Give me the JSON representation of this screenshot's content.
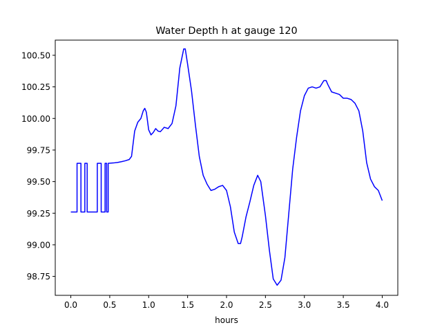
{
  "chart_data": {
    "type": "line",
    "title": "Water Depth h at gauge 120",
    "xlabel": "hours",
    "ylabel": "",
    "xlim": [
      -0.2,
      4.2
    ],
    "ylim": [
      98.6,
      100.62
    ],
    "grid": false,
    "legend": "none",
    "x_ticks": [
      {
        "value": 0.0,
        "label": "0.0"
      },
      {
        "value": 0.5,
        "label": "0.5"
      },
      {
        "value": 1.0,
        "label": "1.0"
      },
      {
        "value": 1.5,
        "label": "1.5"
      },
      {
        "value": 2.0,
        "label": "2.0"
      },
      {
        "value": 2.5,
        "label": "2.5"
      },
      {
        "value": 3.0,
        "label": "3.0"
      },
      {
        "value": 3.5,
        "label": "3.5"
      },
      {
        "value": 4.0,
        "label": "4.0"
      }
    ],
    "y_ticks": [
      {
        "value": 98.75,
        "label": "98.75"
      },
      {
        "value": 99.0,
        "label": "99.00"
      },
      {
        "value": 99.25,
        "label": "99.25"
      },
      {
        "value": 99.5,
        "label": "99.50"
      },
      {
        "value": 99.75,
        "label": "99.75"
      },
      {
        "value": 100.0,
        "label": "100.00"
      },
      {
        "value": 100.25,
        "label": "100.25"
      },
      {
        "value": 100.5,
        "label": "100.50"
      }
    ],
    "series": [
      {
        "color": "#0000ff",
        "points": [
          [
            0.0,
            99.26
          ],
          [
            0.08,
            99.26
          ],
          [
            0.08,
            99.645
          ],
          [
            0.13,
            99.645
          ],
          [
            0.13,
            99.26
          ],
          [
            0.18,
            99.26
          ],
          [
            0.18,
            99.645
          ],
          [
            0.21,
            99.645
          ],
          [
            0.21,
            99.26
          ],
          [
            0.34,
            99.26
          ],
          [
            0.34,
            99.645
          ],
          [
            0.39,
            99.645
          ],
          [
            0.39,
            99.26
          ],
          [
            0.44,
            99.26
          ],
          [
            0.44,
            99.645
          ],
          [
            0.46,
            99.645
          ],
          [
            0.46,
            99.26
          ],
          [
            0.48,
            99.26
          ],
          [
            0.48,
            99.645
          ],
          [
            0.55,
            99.648
          ],
          [
            0.6,
            99.652
          ],
          [
            0.65,
            99.658
          ],
          [
            0.7,
            99.665
          ],
          [
            0.75,
            99.675
          ],
          [
            0.78,
            99.7
          ],
          [
            0.82,
            99.9
          ],
          [
            0.86,
            99.97
          ],
          [
            0.9,
            100.0
          ],
          [
            0.93,
            100.06
          ],
          [
            0.95,
            100.08
          ],
          [
            0.97,
            100.05
          ],
          [
            1.0,
            99.91
          ],
          [
            1.03,
            99.87
          ],
          [
            1.06,
            99.89
          ],
          [
            1.09,
            99.92
          ],
          [
            1.12,
            99.9
          ],
          [
            1.15,
            99.895
          ],
          [
            1.2,
            99.93
          ],
          [
            1.25,
            99.92
          ],
          [
            1.3,
            99.96
          ],
          [
            1.35,
            100.1
          ],
          [
            1.4,
            100.4
          ],
          [
            1.45,
            100.55
          ],
          [
            1.47,
            100.55
          ],
          [
            1.5,
            100.43
          ],
          [
            1.55,
            100.22
          ],
          [
            1.6,
            99.95
          ],
          [
            1.65,
            99.7
          ],
          [
            1.7,
            99.55
          ],
          [
            1.75,
            99.48
          ],
          [
            1.8,
            99.43
          ],
          [
            1.85,
            99.44
          ],
          [
            1.9,
            99.46
          ],
          [
            1.95,
            99.47
          ],
          [
            2.0,
            99.43
          ],
          [
            2.05,
            99.3
          ],
          [
            2.1,
            99.1
          ],
          [
            2.15,
            99.01
          ],
          [
            2.18,
            99.01
          ],
          [
            2.2,
            99.06
          ],
          [
            2.25,
            99.22
          ],
          [
            2.3,
            99.34
          ],
          [
            2.35,
            99.47
          ],
          [
            2.4,
            99.55
          ],
          [
            2.44,
            99.5
          ],
          [
            2.5,
            99.23
          ],
          [
            2.55,
            98.96
          ],
          [
            2.6,
            98.73
          ],
          [
            2.65,
            98.68
          ],
          [
            2.7,
            98.72
          ],
          [
            2.75,
            98.9
          ],
          [
            2.8,
            99.25
          ],
          [
            2.85,
            99.6
          ],
          [
            2.9,
            99.85
          ],
          [
            2.95,
            100.06
          ],
          [
            3.0,
            100.18
          ],
          [
            3.05,
            100.24
          ],
          [
            3.1,
            100.25
          ],
          [
            3.15,
            100.24
          ],
          [
            3.2,
            100.25
          ],
          [
            3.25,
            100.3
          ],
          [
            3.28,
            100.3
          ],
          [
            3.3,
            100.27
          ],
          [
            3.35,
            100.21
          ],
          [
            3.4,
            100.2
          ],
          [
            3.45,
            100.19
          ],
          [
            3.5,
            100.16
          ],
          [
            3.55,
            100.16
          ],
          [
            3.6,
            100.15
          ],
          [
            3.65,
            100.12
          ],
          [
            3.7,
            100.06
          ],
          [
            3.75,
            99.9
          ],
          [
            3.8,
            99.65
          ],
          [
            3.85,
            99.52
          ],
          [
            3.9,
            99.46
          ],
          [
            3.95,
            99.43
          ],
          [
            4.0,
            99.35
          ]
        ]
      }
    ]
  }
}
